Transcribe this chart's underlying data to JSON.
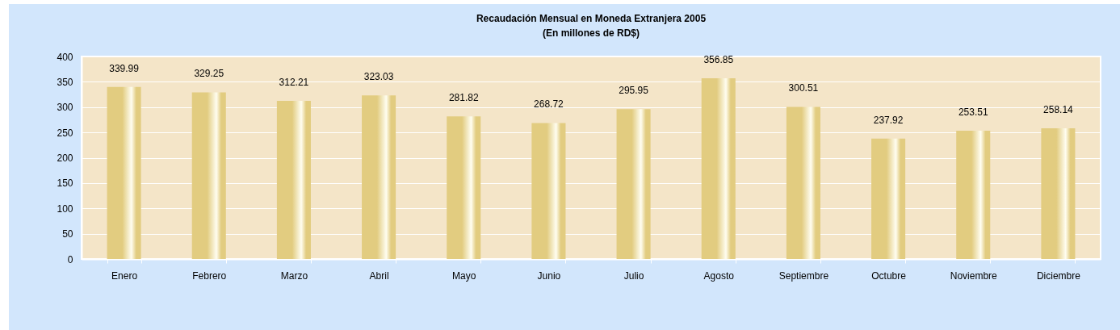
{
  "chart_data": {
    "type": "bar",
    "title": "Recaudación Mensual en Moneda Extranjera 2005",
    "subtitle": "(En millones de RD$)",
    "categories": [
      "Enero",
      "Febrero",
      "Marzo",
      "Abril",
      "Mayo",
      "Junio",
      "Julio",
      "Agosto",
      "Septiembre",
      "Octubre",
      "Noviembre",
      "Diciembre"
    ],
    "values": [
      339.99,
      329.25,
      312.21,
      323.03,
      281.82,
      268.72,
      295.95,
      356.85,
      300.51,
      237.92,
      253.51,
      258.14
    ],
    "color": "#e2cc80",
    "ylim": [
      0,
      400
    ],
    "yticks": [
      0,
      50,
      100,
      150,
      200,
      250,
      300,
      350,
      400
    ],
    "grid": "y",
    "data_labels": true
  }
}
